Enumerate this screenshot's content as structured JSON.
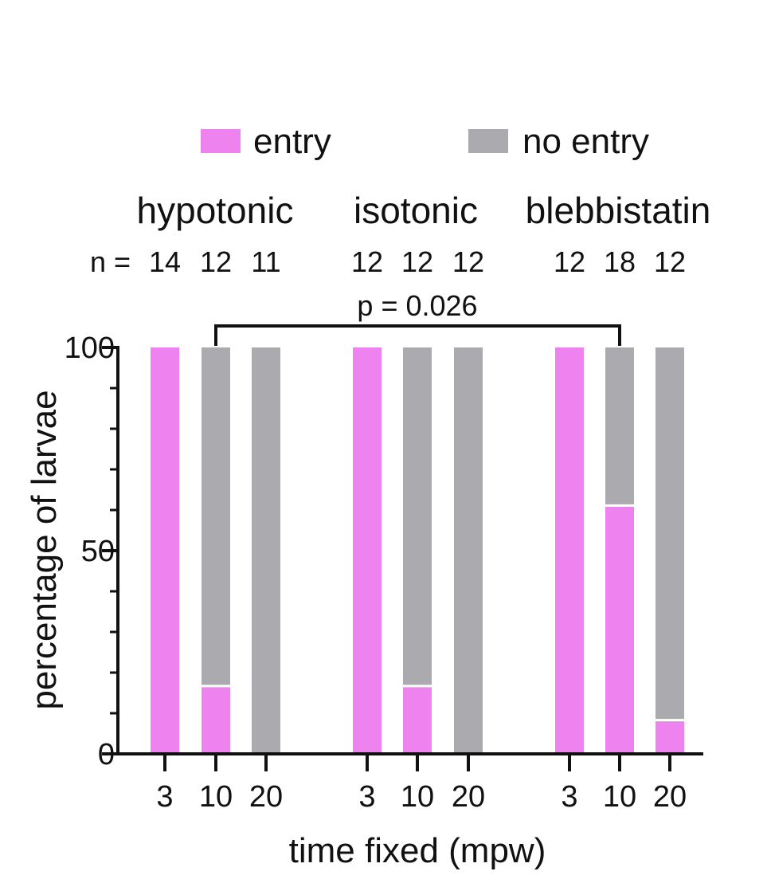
{
  "chart_data": {
    "type": "bar",
    "stacked": true,
    "percent": true,
    "xlabel": "time fixed (mpw)",
    "ylabel": "percentage of larvae",
    "ylim": [
      0,
      100
    ],
    "yticks": [
      "0",
      "50",
      "100"
    ],
    "minor_ticks": [
      10,
      20,
      30,
      40,
      60,
      70,
      80,
      90
    ],
    "legend": {
      "placement": "top",
      "items": [
        {
          "label": "entry",
          "color": "#EE82EE"
        },
        {
          "label": "no entry",
          "color": "#ABABAF"
        }
      ]
    },
    "n_prefix": "n = ",
    "groups": [
      {
        "name": "hypotonic",
        "categories": [
          "3",
          "10",
          "20"
        ],
        "n": [
          "14",
          "12",
          "11"
        ],
        "entry": [
          100,
          16.7,
          0
        ]
      },
      {
        "name": "isotonic",
        "categories": [
          "3",
          "10",
          "20"
        ],
        "n": [
          "12",
          "12",
          "12"
        ],
        "entry": [
          100,
          16.7,
          0
        ]
      },
      {
        "name": "blebbistatin",
        "categories": [
          "3",
          "10",
          "20"
        ],
        "n": [
          "12",
          "18",
          "12"
        ],
        "entry": [
          100,
          61.1,
          8.3
        ]
      }
    ],
    "series": [
      {
        "name": "entry",
        "color": "#EE82EE"
      },
      {
        "name": "no entry",
        "color": "#ABABAF"
      }
    ],
    "annotation": {
      "text": "p = 0.026",
      "from": {
        "group": 0,
        "bar": 1
      },
      "to": {
        "group": 2,
        "bar": 1
      }
    }
  }
}
